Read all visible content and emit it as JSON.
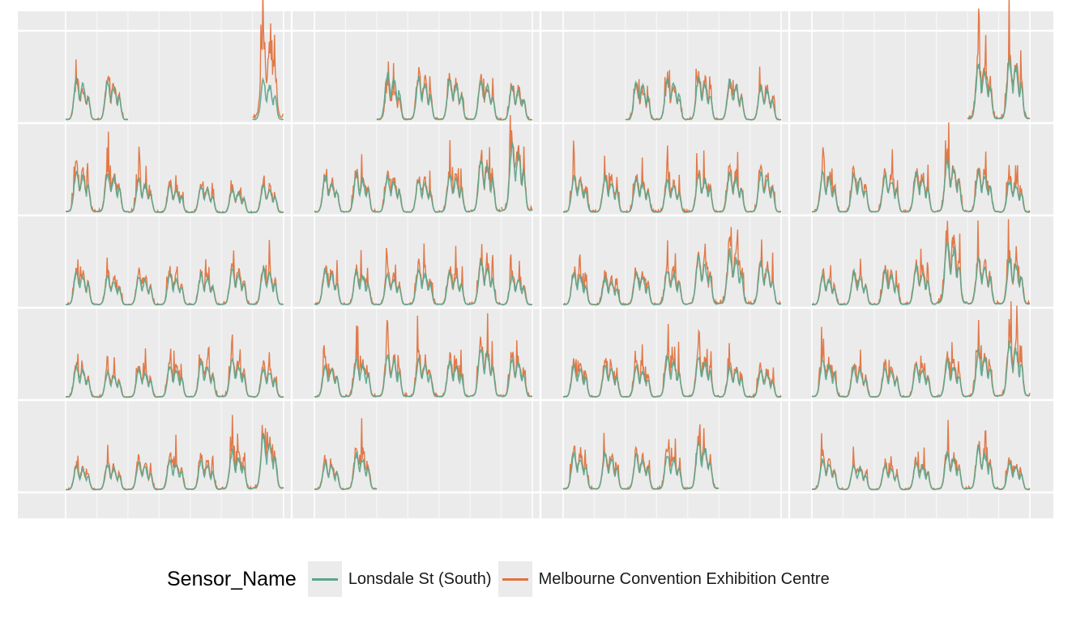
{
  "chart_data": {
    "type": "line",
    "title": "",
    "xlabel": "",
    "ylabel": "",
    "grid": true,
    "layout": "calendar facets, 4 columns x 5 rows, each facet shows daily hourly pedestrian counts",
    "legend": {
      "title": "Sensor_Name",
      "placement": "bottom",
      "entries": [
        "Lonsdale St (South)",
        "Melbourne Convention Exhibition Centre"
      ]
    },
    "colors": {
      "Lonsdale St (South)": "#5aa58c",
      "Melbourne Convention Exhibition Centre": "#e2733f",
      "overlap": "#9a6a3c"
    },
    "facets": [
      {
        "row": 0,
        "col": 0,
        "days": [
          1,
          1,
          0,
          0,
          0,
          0,
          1
        ],
        "peaks": [
          [
            0.42,
            0.45
          ],
          [
            0.45,
            0.43
          ],
          null,
          null,
          null,
          null,
          [
            0.96,
            0.45
          ]
        ]
      },
      {
        "row": 0,
        "col": 1,
        "days": [
          0,
          0,
          1,
          1,
          1,
          1,
          1
        ],
        "peaks": [
          null,
          null,
          [
            0.4,
            0.52
          ],
          [
            0.52,
            0.46
          ],
          [
            0.48,
            0.46
          ],
          [
            0.45,
            0.44
          ],
          [
            0.4,
            0.38
          ]
        ]
      },
      {
        "row": 0,
        "col": 2,
        "days": [
          0,
          0,
          1,
          1,
          1,
          1,
          1
        ],
        "peaks": [
          [
            0,
            0
          ],
          [
            0,
            0
          ],
          [
            0.4,
            0.44
          ],
          [
            0.42,
            0.48
          ],
          [
            0.52,
            0.46
          ],
          [
            0.45,
            0.44
          ],
          [
            0.4,
            0.38
          ]
        ]
      },
      {
        "row": 0,
        "col": 3,
        "days": [
          0,
          0,
          0,
          0,
          0,
          1,
          1
        ],
        "peaks": [
          null,
          null,
          null,
          null,
          null,
          [
            0.7,
            0.62
          ],
          [
            0.72,
            0.66
          ]
        ]
      },
      {
        "row": 1,
        "col": 0,
        "days": [
          1,
          1,
          1,
          1,
          1,
          1,
          1
        ],
        "peaks": [
          [
            0.52,
            0.48
          ],
          [
            0.48,
            0.45
          ],
          [
            0.38,
            0.36
          ],
          [
            0.34,
            0.3
          ],
          [
            0.32,
            0.3
          ],
          [
            0.28,
            0.26
          ],
          [
            0.34,
            0.3
          ]
        ]
      },
      {
        "row": 1,
        "col": 1,
        "days": [
          1,
          1,
          1,
          1,
          1,
          1,
          1
        ],
        "peaks": [
          [
            0.42,
            0.4
          ],
          [
            0.46,
            0.42
          ],
          [
            0.44,
            0.4
          ],
          [
            0.4,
            0.38
          ],
          [
            0.48,
            0.42
          ],
          [
            0.62,
            0.58
          ],
          [
            0.8,
            0.74
          ]
        ]
      },
      {
        "row": 1,
        "col": 2,
        "days": [
          1,
          1,
          1,
          1,
          1,
          1,
          1
        ],
        "peaks": [
          [
            0.44,
            0.4
          ],
          [
            0.44,
            0.4
          ],
          [
            0.42,
            0.38
          ],
          [
            0.4,
            0.36
          ],
          [
            0.46,
            0.42
          ],
          [
            0.5,
            0.44
          ],
          [
            0.48,
            0.44
          ]
        ]
      },
      {
        "row": 1,
        "col": 3,
        "days": [
          1,
          1,
          1,
          1,
          1,
          1,
          1
        ],
        "peaks": [
          [
            0.5,
            0.44
          ],
          [
            0.48,
            0.42
          ],
          [
            0.46,
            0.42
          ],
          [
            0.48,
            0.44
          ],
          [
            0.62,
            0.56
          ],
          [
            0.52,
            0.46
          ],
          [
            0.4,
            0.36
          ]
        ]
      },
      {
        "row": 2,
        "col": 0,
        "days": [
          1,
          1,
          1,
          1,
          1,
          1,
          1
        ],
        "peaks": [
          [
            0.4,
            0.38
          ],
          [
            0.36,
            0.32
          ],
          [
            0.36,
            0.32
          ],
          [
            0.38,
            0.34
          ],
          [
            0.36,
            0.34
          ],
          [
            0.44,
            0.4
          ],
          [
            0.44,
            0.4
          ]
        ]
      },
      {
        "row": 2,
        "col": 1,
        "days": [
          1,
          1,
          1,
          1,
          1,
          1,
          1
        ],
        "peaks": [
          [
            0.42,
            0.4
          ],
          [
            0.42,
            0.38
          ],
          [
            0.38,
            0.34
          ],
          [
            0.46,
            0.4
          ],
          [
            0.42,
            0.38
          ],
          [
            0.52,
            0.48
          ],
          [
            0.36,
            0.32
          ]
        ]
      },
      {
        "row": 2,
        "col": 2,
        "days": [
          1,
          1,
          1,
          1,
          1,
          1,
          1
        ],
        "peaks": [
          [
            0.4,
            0.36
          ],
          [
            0.34,
            0.3
          ],
          [
            0.4,
            0.36
          ],
          [
            0.44,
            0.4
          ],
          [
            0.58,
            0.52
          ],
          [
            0.66,
            0.58
          ],
          [
            0.5,
            0.46
          ]
        ]
      },
      {
        "row": 2,
        "col": 3,
        "days": [
          1,
          1,
          1,
          1,
          1,
          1,
          1
        ],
        "peaks": [
          [
            0.36,
            0.32
          ],
          [
            0.4,
            0.36
          ],
          [
            0.42,
            0.38
          ],
          [
            0.46,
            0.42
          ],
          [
            0.82,
            0.7
          ],
          [
            0.56,
            0.5
          ],
          [
            0.56,
            0.5
          ]
        ]
      },
      {
        "row": 3,
        "col": 0,
        "days": [
          1,
          1,
          1,
          1,
          1,
          1,
          1
        ],
        "peaks": [
          [
            0.38,
            0.34
          ],
          [
            0.32,
            0.28
          ],
          [
            0.36,
            0.32
          ],
          [
            0.4,
            0.36
          ],
          [
            0.44,
            0.4
          ],
          [
            0.46,
            0.42
          ],
          [
            0.36,
            0.32
          ]
        ]
      },
      {
        "row": 3,
        "col": 1,
        "days": [
          1,
          1,
          1,
          1,
          1,
          1,
          1
        ],
        "peaks": [
          [
            0.4,
            0.36
          ],
          [
            0.46,
            0.42
          ],
          [
            0.52,
            0.46
          ],
          [
            0.48,
            0.42
          ],
          [
            0.44,
            0.4
          ],
          [
            0.6,
            0.56
          ],
          [
            0.48,
            0.44
          ]
        ]
      },
      {
        "row": 3,
        "col": 2,
        "days": [
          1,
          1,
          1,
          1,
          1,
          1,
          1
        ],
        "peaks": [
          [
            0.4,
            0.36
          ],
          [
            0.4,
            0.36
          ],
          [
            0.38,
            0.34
          ],
          [
            0.48,
            0.44
          ],
          [
            0.5,
            0.46
          ],
          [
            0.38,
            0.34
          ],
          [
            0.34,
            0.3
          ]
        ]
      },
      {
        "row": 3,
        "col": 3,
        "days": [
          1,
          1,
          1,
          1,
          1,
          1,
          1
        ],
        "peaks": [
          [
            0.46,
            0.42
          ],
          [
            0.38,
            0.34
          ],
          [
            0.38,
            0.34
          ],
          [
            0.4,
            0.36
          ],
          [
            0.44,
            0.4
          ],
          [
            0.56,
            0.5
          ],
          [
            0.66,
            0.6
          ]
        ]
      },
      {
        "row": 4,
        "col": 0,
        "days": [
          1,
          1,
          1,
          1,
          1,
          1,
          1
        ],
        "peaks": [
          [
            0.28,
            0.26
          ],
          [
            0.3,
            0.28
          ],
          [
            0.34,
            0.3
          ],
          [
            0.38,
            0.34
          ],
          [
            0.36,
            0.32
          ],
          [
            0.46,
            0.42
          ],
          [
            0.64,
            0.6
          ]
        ]
      },
      {
        "row": 4,
        "col": 1,
        "days": [
          1,
          1,
          1,
          0,
          0,
          0,
          0
        ],
        "peaks": [
          [
            0.34,
            0.3
          ],
          [
            0.48,
            0.4
          ],
          [
            0,
            0
          ],
          null,
          null,
          null,
          null
        ]
      },
      {
        "row": 4,
        "col": 2,
        "days": [
          1,
          1,
          1,
          1,
          1,
          0,
          0
        ],
        "peaks": [
          [
            0.48,
            0.42
          ],
          [
            0.44,
            0.4
          ],
          [
            0.42,
            0.38
          ],
          [
            0.46,
            0.4
          ],
          [
            0.58,
            0.52
          ],
          null,
          null
        ]
      },
      {
        "row": 4,
        "col": 3,
        "days": [
          1,
          1,
          1,
          1,
          1,
          1,
          1
        ],
        "peaks": [
          [
            0.38,
            0.34
          ],
          [
            0.3,
            0.28
          ],
          [
            0.3,
            0.28
          ],
          [
            0.34,
            0.3
          ],
          [
            0.44,
            0.4
          ],
          [
            0.5,
            0.46
          ],
          [
            0.34,
            0.3
          ]
        ]
      }
    ]
  }
}
